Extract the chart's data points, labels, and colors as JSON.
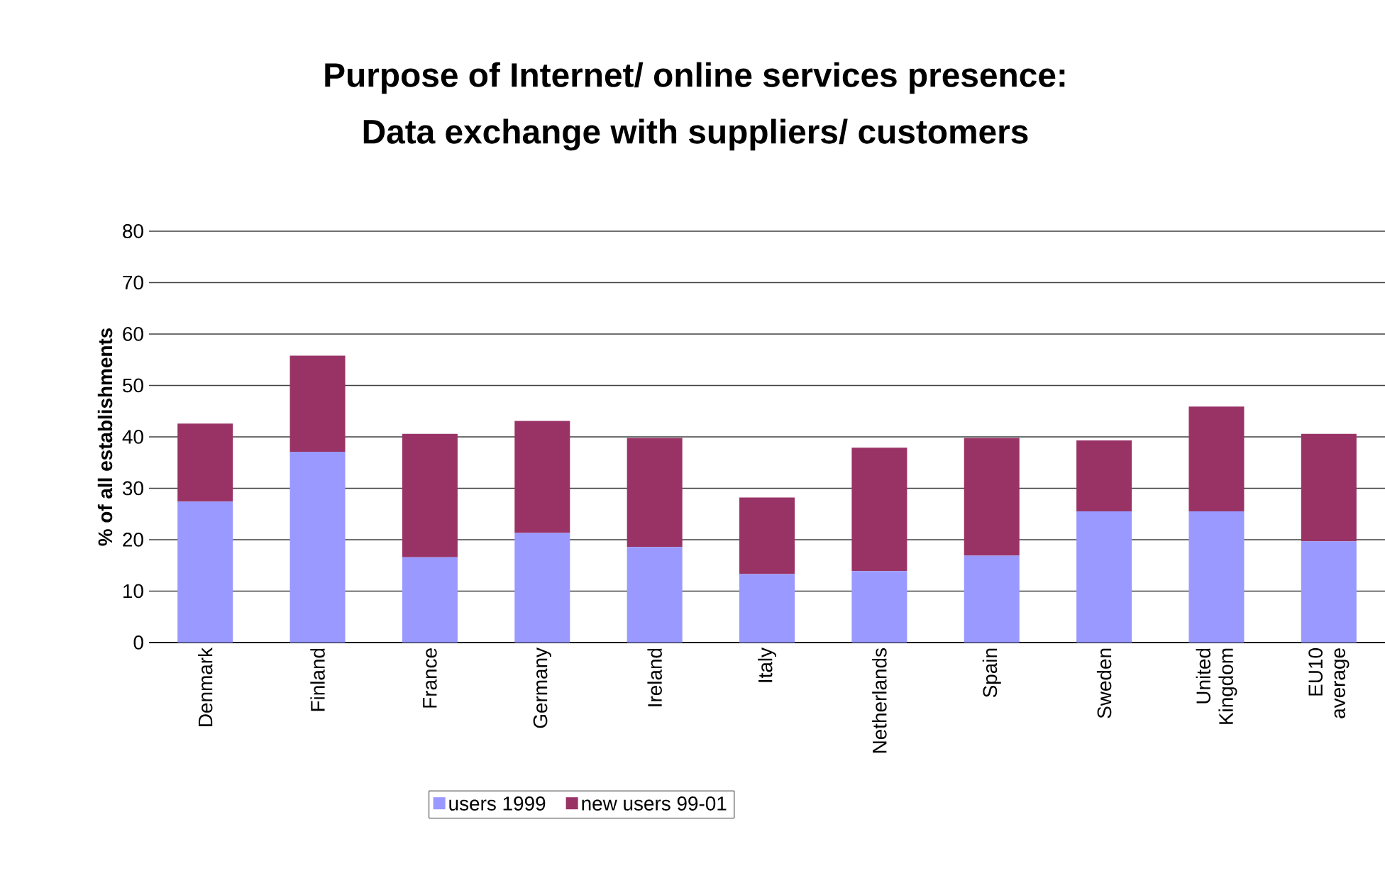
{
  "chart_data": {
    "type": "bar",
    "stacked": true,
    "title": "Purpose of Internet/ online services presence:",
    "subtitle": "Data exchange with suppliers/ customers",
    "ylabel": "% of all establishments",
    "categories": [
      "Denmark",
      "Finland",
      "France",
      "Germany",
      "Ireland",
      "Italy",
      "Netherlands",
      "Spain",
      "Sweden",
      "United Kingdom",
      "EU10 average"
    ],
    "series": [
      {
        "name": "users 1999",
        "color": "#9999ff",
        "values": [
          27.4,
          37.1,
          16.6,
          21.3,
          18.6,
          13.3,
          13.9,
          16.9,
          25.5,
          25.5,
          19.7
        ]
      },
      {
        "name": "new users 99-01",
        "color": "#993366",
        "values": [
          15.2,
          18.7,
          24.0,
          21.8,
          21.2,
          14.9,
          24.0,
          22.9,
          13.8,
          20.4,
          20.9
        ]
      }
    ],
    "ylim": [
      0,
      80
    ],
    "yticks": [
      0,
      10,
      20,
      30,
      40,
      50,
      60,
      70,
      80
    ],
    "grid": "y",
    "legend": "bottom"
  }
}
